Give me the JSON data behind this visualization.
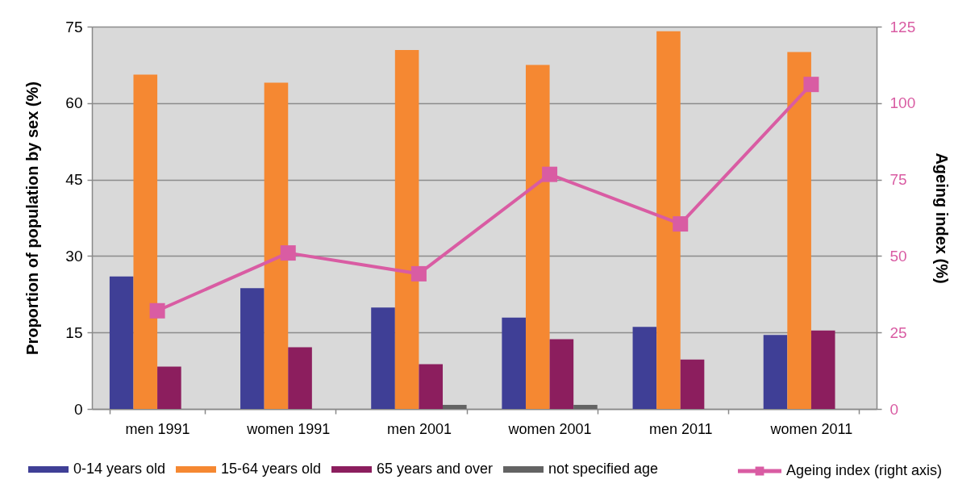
{
  "chart_data": {
    "type": "bar",
    "categories": [
      "men 1991",
      "women 1991",
      "men 2001",
      "women 2001",
      "men 2011",
      "women 2011"
    ],
    "series": [
      {
        "name": "0-14 years old",
        "color": "#3f3f96",
        "values": [
          26.0,
          23.7,
          19.9,
          17.9,
          16.1,
          14.5
        ]
      },
      {
        "name": "15-64 years old",
        "color": "#f58832",
        "values": [
          65.6,
          64.0,
          70.4,
          67.5,
          74.1,
          70.0
        ]
      },
      {
        "name": "65 years and over",
        "color": "#8c1e5e",
        "values": [
          8.3,
          12.1,
          8.8,
          13.7,
          9.7,
          15.4
        ]
      },
      {
        "name": "not specified age",
        "color": "#636363",
        "values": [
          null,
          null,
          0.8,
          0.8,
          null,
          null
        ]
      },
      {
        "name": "Ageing index (right axis)",
        "type": "line",
        "axis": "y2",
        "color": "#d95ca3",
        "marker": "square",
        "line_style": "solid",
        "values": [
          32.1,
          51.0,
          44.2,
          76.7,
          60.5,
          106.1
        ]
      }
    ],
    "ylabel": "Proportion of population by sex (%)",
    "y2label": "Ageing index (%)",
    "ylim": [
      0,
      75
    ],
    "yticks": [
      0,
      15,
      30,
      45,
      60,
      75
    ],
    "y2lim": [
      0,
      125
    ],
    "y2ticks": [
      0,
      25,
      50,
      75,
      100,
      125
    ],
    "grid": "y",
    "legend": "bottom"
  }
}
